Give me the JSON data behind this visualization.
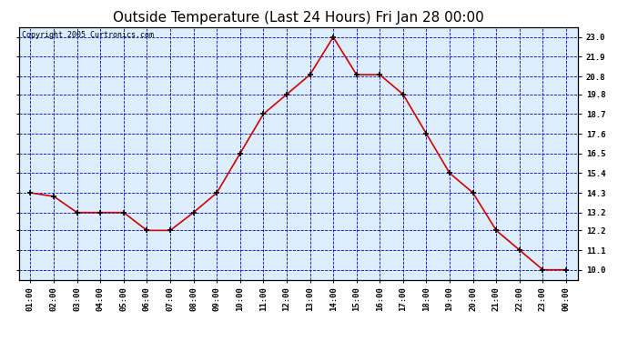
{
  "title": "Outside Temperature (Last 24 Hours) Fri Jan 28 00:00",
  "copyright": "Copyright 2005 Curtronics.com",
  "x_labels": [
    "01:00",
    "02:00",
    "03:00",
    "04:00",
    "05:00",
    "06:00",
    "07:00",
    "08:00",
    "09:00",
    "10:00",
    "11:00",
    "12:00",
    "13:00",
    "14:00",
    "15:00",
    "16:00",
    "17:00",
    "18:00",
    "19:00",
    "20:00",
    "21:00",
    "22:00",
    "23:00",
    "00:00"
  ],
  "y_values": [
    14.3,
    14.1,
    13.2,
    13.2,
    13.2,
    12.2,
    12.2,
    13.2,
    14.3,
    16.5,
    18.7,
    19.8,
    20.9,
    23.0,
    20.9,
    20.9,
    19.8,
    17.6,
    15.4,
    14.3,
    12.2,
    11.1,
    10.0,
    10.0
  ],
  "line_color": "#cc0000",
  "marker_color": "#000000",
  "bg_color": "#ffffff",
  "plot_bg_color": "#ddeeff",
  "grid_color": "#0000cc",
  "title_fontsize": 11,
  "title_color": "#000000",
  "tick_color": "#000000",
  "y_ticks": [
    10.0,
    11.1,
    12.2,
    13.2,
    14.3,
    15.4,
    16.5,
    17.6,
    18.7,
    19.8,
    20.8,
    21.9,
    23.0
  ],
  "ylim": [
    9.45,
    23.55
  ],
  "xlim": [
    -0.5,
    23.5
  ]
}
